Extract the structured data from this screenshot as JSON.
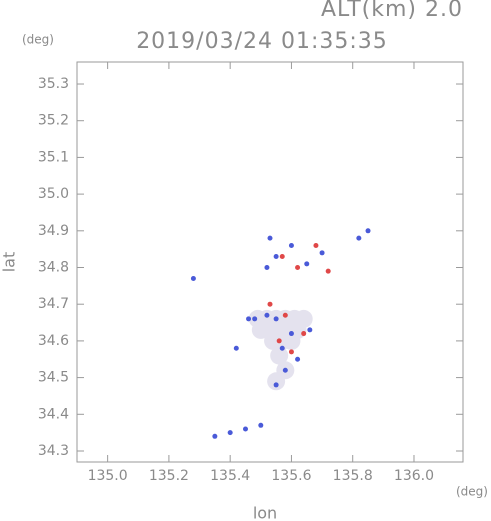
{
  "chart_data": {
    "type": "scatter",
    "title": "2019/03/24 01:35:35",
    "subtitle": "ALT(km) 2.0",
    "x_label": "lon",
    "y_label": "lat",
    "x_unit": "(deg)",
    "y_unit": "(deg)",
    "xlim": [
      134.9,
      136.16
    ],
    "ylim": [
      34.27,
      35.36
    ],
    "xticks": [
      {
        "value": 135,
        "label": "135.0"
      },
      135.2,
      135.4,
      135.6,
      135.8,
      {
        "value": 136,
        "label": "136.0"
      }
    ],
    "yticks": [
      34.3,
      34.4,
      34.5,
      34.6,
      34.7,
      34.8,
      34.9,
      {
        "value": 35,
        "label": "35.0"
      },
      35.1,
      35.2,
      35.3
    ],
    "series": [
      {
        "color": "#e4e2ee",
        "size": 9,
        "x": [
          135.49,
          135.52,
          135.55,
          135.58,
          135.61,
          135.64,
          135.5,
          135.53,
          135.56,
          135.59,
          135.62,
          135.54,
          135.57,
          135.6,
          135.56,
          135.58,
          135.55
        ],
        "y": [
          34.66,
          34.66,
          34.66,
          34.66,
          34.66,
          34.66,
          34.63,
          34.63,
          34.63,
          34.63,
          34.63,
          34.6,
          34.6,
          34.6,
          34.56,
          34.52,
          34.49
        ]
      },
      {
        "color": "#4a5ad8",
        "size": 2.5,
        "x": [
          135.53,
          135.55,
          135.52,
          135.6,
          135.65,
          135.7,
          135.82,
          135.85,
          135.48,
          135.55,
          135.6,
          135.57,
          135.62,
          135.58,
          135.55,
          135.4,
          135.45,
          135.5,
          135.35,
          135.42,
          135.28,
          135.66,
          135.46,
          135.52
        ],
        "y": [
          34.88,
          34.83,
          34.8,
          34.86,
          34.81,
          34.84,
          34.88,
          34.9,
          34.66,
          34.66,
          34.62,
          34.58,
          34.55,
          34.52,
          34.48,
          34.35,
          34.36,
          34.37,
          34.34,
          34.58,
          34.77,
          34.63,
          34.66,
          34.67
        ]
      },
      {
        "color": "#e04848",
        "size": 2.5,
        "x": [
          135.57,
          135.62,
          135.68,
          135.53,
          135.56,
          135.6,
          135.64,
          135.58,
          135.72
        ],
        "y": [
          34.83,
          34.8,
          34.86,
          34.7,
          34.6,
          34.57,
          34.62,
          34.67,
          34.79
        ]
      }
    ]
  }
}
